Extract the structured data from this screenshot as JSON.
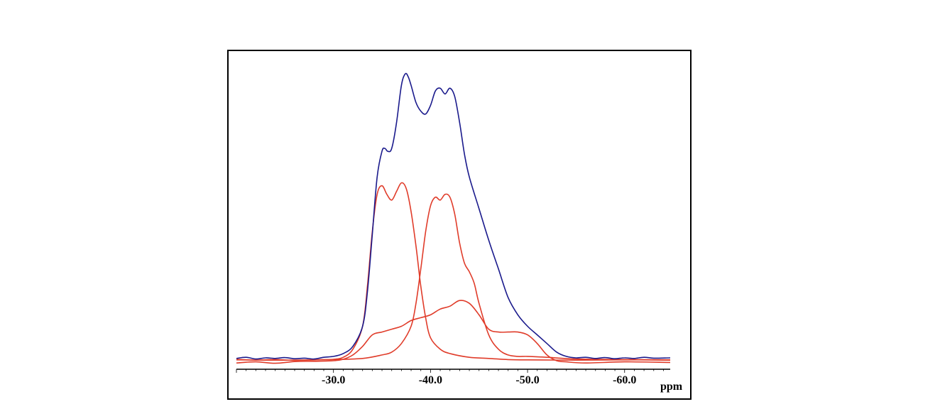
{
  "chart_data": {
    "type": "line",
    "title": "",
    "xlabel": "ppm",
    "ylabel": "",
    "xlim": [
      -20.0,
      -64.7
    ],
    "ylim": [
      0,
      1
    ],
    "x_reversed": true,
    "grid": false,
    "legend": "none",
    "x_ticks": [
      {
        "value": -30.0,
        "label": "-30.0"
      },
      {
        "value": -40.0,
        "label": "-40.0"
      },
      {
        "value": -50.0,
        "label": "-50.0"
      },
      {
        "value": -60.0,
        "label": "-60.0"
      }
    ],
    "series": [
      {
        "color": "#1a1a8c",
        "role": "experimental",
        "x": [
          -20.0,
          -21.0,
          -22.0,
          -23.0,
          -24.0,
          -25.0,
          -26.0,
          -27.0,
          -28.0,
          -29.0,
          -30.0,
          -31.0,
          -32.0,
          -33.0,
          -33.5,
          -34.0,
          -34.5,
          -35.0,
          -35.3,
          -35.6,
          -36.0,
          -36.5,
          -37.0,
          -37.4,
          -37.7,
          -38.0,
          -38.5,
          -39.0,
          -39.5,
          -40.0,
          -40.5,
          -41.0,
          -41.5,
          -42.0,
          -42.5,
          -43.0,
          -43.5,
          -44.0,
          -45.0,
          -46.0,
          -47.0,
          -48.0,
          -49.0,
          -50.0,
          -51.0,
          -52.0,
          -53.0,
          -54.0,
          -55.0,
          -56.0,
          -57.0,
          -58.0,
          -59.0,
          -60.0,
          -61.0,
          -62.0,
          -63.0,
          -64.7
        ],
        "y": [
          0.008,
          0.012,
          0.006,
          0.01,
          0.008,
          0.011,
          0.007,
          0.009,
          0.006,
          0.012,
          0.015,
          0.025,
          0.05,
          0.12,
          0.24,
          0.44,
          0.64,
          0.73,
          0.74,
          0.73,
          0.74,
          0.83,
          0.96,
          1.0,
          0.99,
          0.96,
          0.9,
          0.87,
          0.86,
          0.89,
          0.94,
          0.95,
          0.93,
          0.95,
          0.92,
          0.83,
          0.72,
          0.64,
          0.53,
          0.42,
          0.32,
          0.22,
          0.16,
          0.12,
          0.09,
          0.06,
          0.03,
          0.015,
          0.01,
          0.012,
          0.008,
          0.011,
          0.007,
          0.01,
          0.008,
          0.012,
          0.009,
          0.01
        ]
      },
      {
        "color": "#e03c2a",
        "role": "component 1",
        "x": [
          -20.0,
          -22.0,
          -24.0,
          -26.0,
          -28.0,
          -30.0,
          -31.0,
          -32.0,
          -33.0,
          -33.5,
          -34.0,
          -34.5,
          -35.0,
          -35.5,
          -36.0,
          -36.5,
          -37.0,
          -37.5,
          -38.0,
          -38.5,
          -39.0,
          -39.5,
          -40.0,
          -41.0,
          -42.0,
          -44.0,
          -46.0,
          -48.0,
          -50.0,
          -55.0,
          -60.0,
          -64.7
        ],
        "y": [
          0.005,
          0.002,
          0.004,
          0.001,
          0.003,
          0.005,
          0.012,
          0.04,
          0.12,
          0.26,
          0.45,
          0.58,
          0.61,
          0.58,
          0.56,
          0.59,
          0.62,
          0.6,
          0.52,
          0.4,
          0.26,
          0.15,
          0.08,
          0.04,
          0.025,
          0.012,
          0.008,
          0.004,
          0.003,
          0.002,
          0.003,
          0.002
        ]
      },
      {
        "color": "#e03c2a",
        "role": "component 2",
        "x": [
          -20.0,
          -25.0,
          -30.0,
          -33.0,
          -35.0,
          -36.0,
          -37.0,
          -38.0,
          -38.5,
          -39.0,
          -39.5,
          -40.0,
          -40.5,
          -41.0,
          -41.5,
          -42.0,
          -42.5,
          -43.0,
          -43.5,
          -44.0,
          -44.5,
          -45.0,
          -46.0,
          -47.0,
          -48.0,
          -49.0,
          -50.0,
          -52.0,
          -55.0,
          -60.0,
          -64.7
        ],
        "y": [
          0.003,
          0.002,
          0.004,
          0.008,
          0.02,
          0.03,
          0.06,
          0.12,
          0.2,
          0.32,
          0.45,
          0.54,
          0.57,
          0.56,
          0.58,
          0.57,
          0.51,
          0.41,
          0.34,
          0.31,
          0.27,
          0.2,
          0.09,
          0.04,
          0.02,
          0.015,
          0.015,
          0.012,
          0.006,
          0.004,
          0.003
        ]
      },
      {
        "color": "#e03c2a",
        "role": "component 3",
        "x": [
          -20.0,
          -22.0,
          -24.0,
          -26.0,
          -28.0,
          -30.0,
          -31.0,
          -32.0,
          -33.0,
          -34.0,
          -35.0,
          -36.0,
          -37.0,
          -38.0,
          -39.0,
          -40.0,
          -41.0,
          -42.0,
          -43.0,
          -44.0,
          -45.0,
          -46.0,
          -47.0,
          -48.0,
          -49.0,
          -50.0,
          -51.0,
          -52.0,
          -53.0,
          -54.0,
          -56.0,
          -60.0,
          -64.7
        ],
        "y": [
          -0.008,
          -0.004,
          -0.009,
          -0.003,
          -0.002,
          0.0,
          0.005,
          0.02,
          0.05,
          0.09,
          0.1,
          0.11,
          0.12,
          0.14,
          0.15,
          0.16,
          0.18,
          0.19,
          0.21,
          0.2,
          0.16,
          0.11,
          0.1,
          0.1,
          0.1,
          0.09,
          0.06,
          0.02,
          0.0,
          -0.004,
          -0.008,
          -0.004,
          -0.006
        ]
      }
    ]
  }
}
